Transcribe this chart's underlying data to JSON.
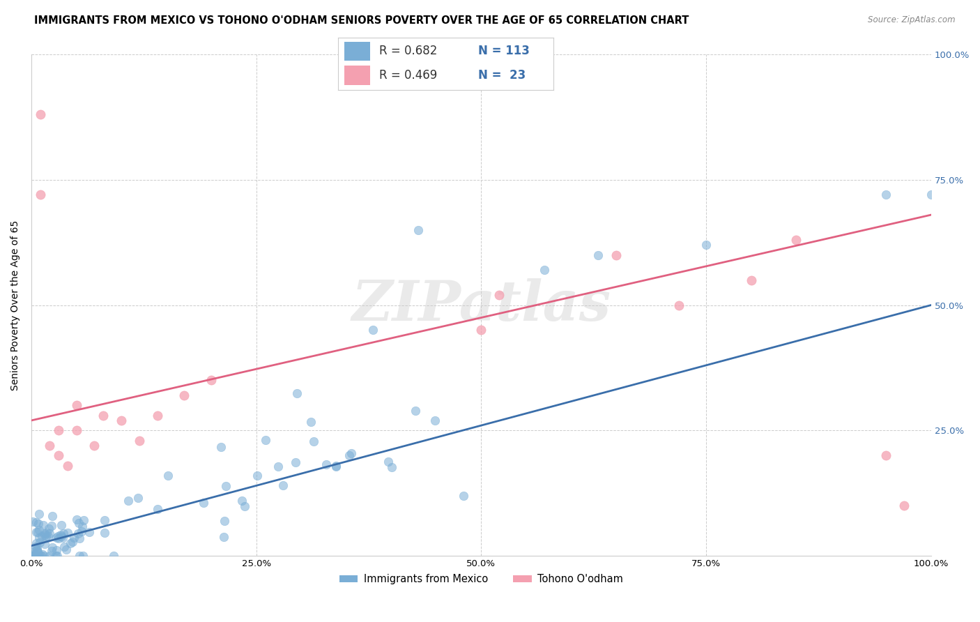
{
  "title": "IMMIGRANTS FROM MEXICO VS TOHONO O'ODHAM SENIORS POVERTY OVER THE AGE OF 65 CORRELATION CHART",
  "source": "Source: ZipAtlas.com",
  "ylabel": "Seniors Poverty Over the Age of 65",
  "xlim": [
    0,
    1.0
  ],
  "ylim": [
    0,
    1.0
  ],
  "xtick_vals": [
    0.0,
    0.25,
    0.5,
    0.75,
    1.0
  ],
  "xtick_labels": [
    "0.0%",
    "25.0%",
    "50.0%",
    "75.0%",
    "100.0%"
  ],
  "ytick_vals": [
    0.0,
    0.25,
    0.5,
    0.75,
    1.0
  ],
  "ytick_labels": [
    "",
    "25.0%",
    "50.0%",
    "75.0%",
    "100.0%"
  ],
  "blue_color": "#7aaed6",
  "pink_color": "#f4a0b0",
  "blue_line_color": "#3a6eaa",
  "pink_line_color": "#e06080",
  "legend_R_blue": "0.682",
  "legend_N_blue": "113",
  "legend_R_pink": "0.469",
  "legend_N_pink": "23",
  "legend_label_blue": "Immigrants from Mexico",
  "legend_label_pink": "Tohono O'odham",
  "watermark": "ZIPatlas",
  "blue_trend_x0": 0.0,
  "blue_trend_x1": 1.0,
  "blue_trend_y0": 0.02,
  "blue_trend_y1": 0.5,
  "pink_trend_x0": 0.0,
  "pink_trend_x1": 1.0,
  "pink_trend_y0": 0.27,
  "pink_trend_y1": 0.68,
  "title_fontsize": 10.5,
  "axis_label_fontsize": 10,
  "tick_fontsize": 9.5,
  "source_fontsize": 8.5,
  "right_tick_color": "#3a6eaa",
  "grid_color": "#cccccc",
  "note_color": "#3a6eaa"
}
